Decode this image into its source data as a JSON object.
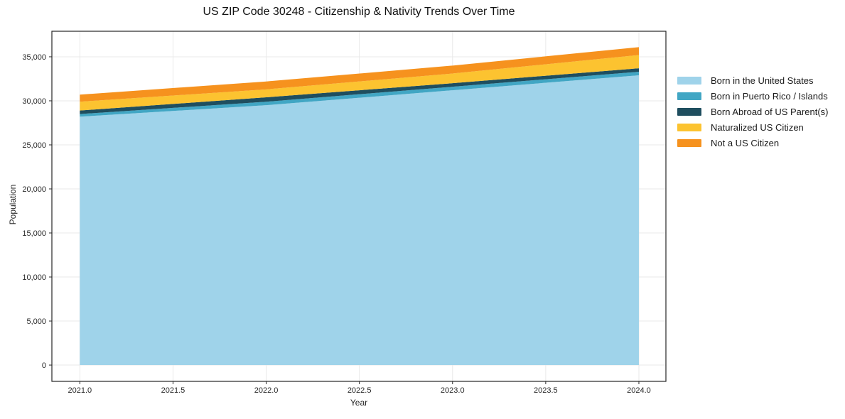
{
  "title": "US ZIP Code 30248 - Citizenship & Nativity Trends Over Time",
  "chart_data": {
    "type": "area",
    "stacked": true,
    "title": "US ZIP Code 30248 - Citizenship & Nativity Trends Over Time",
    "xlabel": "Year",
    "ylabel": "Population",
    "x": [
      2021,
      2022,
      2023,
      2024
    ],
    "series": [
      {
        "name": "Born in the United States",
        "color": "#9fd3ea",
        "values": [
          28200,
          29500,
          31200,
          32900
        ]
      },
      {
        "name": "Born in Puerto Rico / Islands",
        "color": "#41a6c4",
        "values": [
          300,
          400,
          400,
          400
        ]
      },
      {
        "name": "Born Abroad of US Parent(s)",
        "color": "#1f4e5f",
        "values": [
          400,
          500,
          400,
          400
        ]
      },
      {
        "name": "Naturalized US Citizen",
        "color": "#fcc330",
        "values": [
          1000,
          900,
          1100,
          1500
        ]
      },
      {
        "name": "Not a US Citizen",
        "color": "#f6921e",
        "values": [
          800,
          900,
          900,
          900
        ]
      }
    ],
    "stacked_totals": [
      30700,
      32200,
      34000,
      36100
    ],
    "xlim": [
      2020.85,
      2024.145
    ],
    "ylim": [
      -1850,
      37900
    ],
    "xticks": {
      "values": [
        2021,
        2021.5,
        2022,
        2022.5,
        2023,
        2023.5,
        2024
      ],
      "labels": [
        "2021.0",
        "2021.5",
        "2022.0",
        "2022.5",
        "2023.0",
        "2023.5",
        "2024.0"
      ]
    },
    "yticks": {
      "values": [
        0,
        5000,
        10000,
        15000,
        20000,
        25000,
        30000,
        35000
      ],
      "labels": [
        "0",
        "5,000",
        "10,000",
        "15,000",
        "20,000",
        "25,000",
        "30,000",
        "35,000"
      ]
    },
    "grid": true,
    "legend_position": "right-outside"
  },
  "colors": {
    "background": "#ffffff",
    "grid": "#e9e9e9",
    "spine": "#262626",
    "tick_text": "#262626",
    "title_text": "#111111"
  }
}
